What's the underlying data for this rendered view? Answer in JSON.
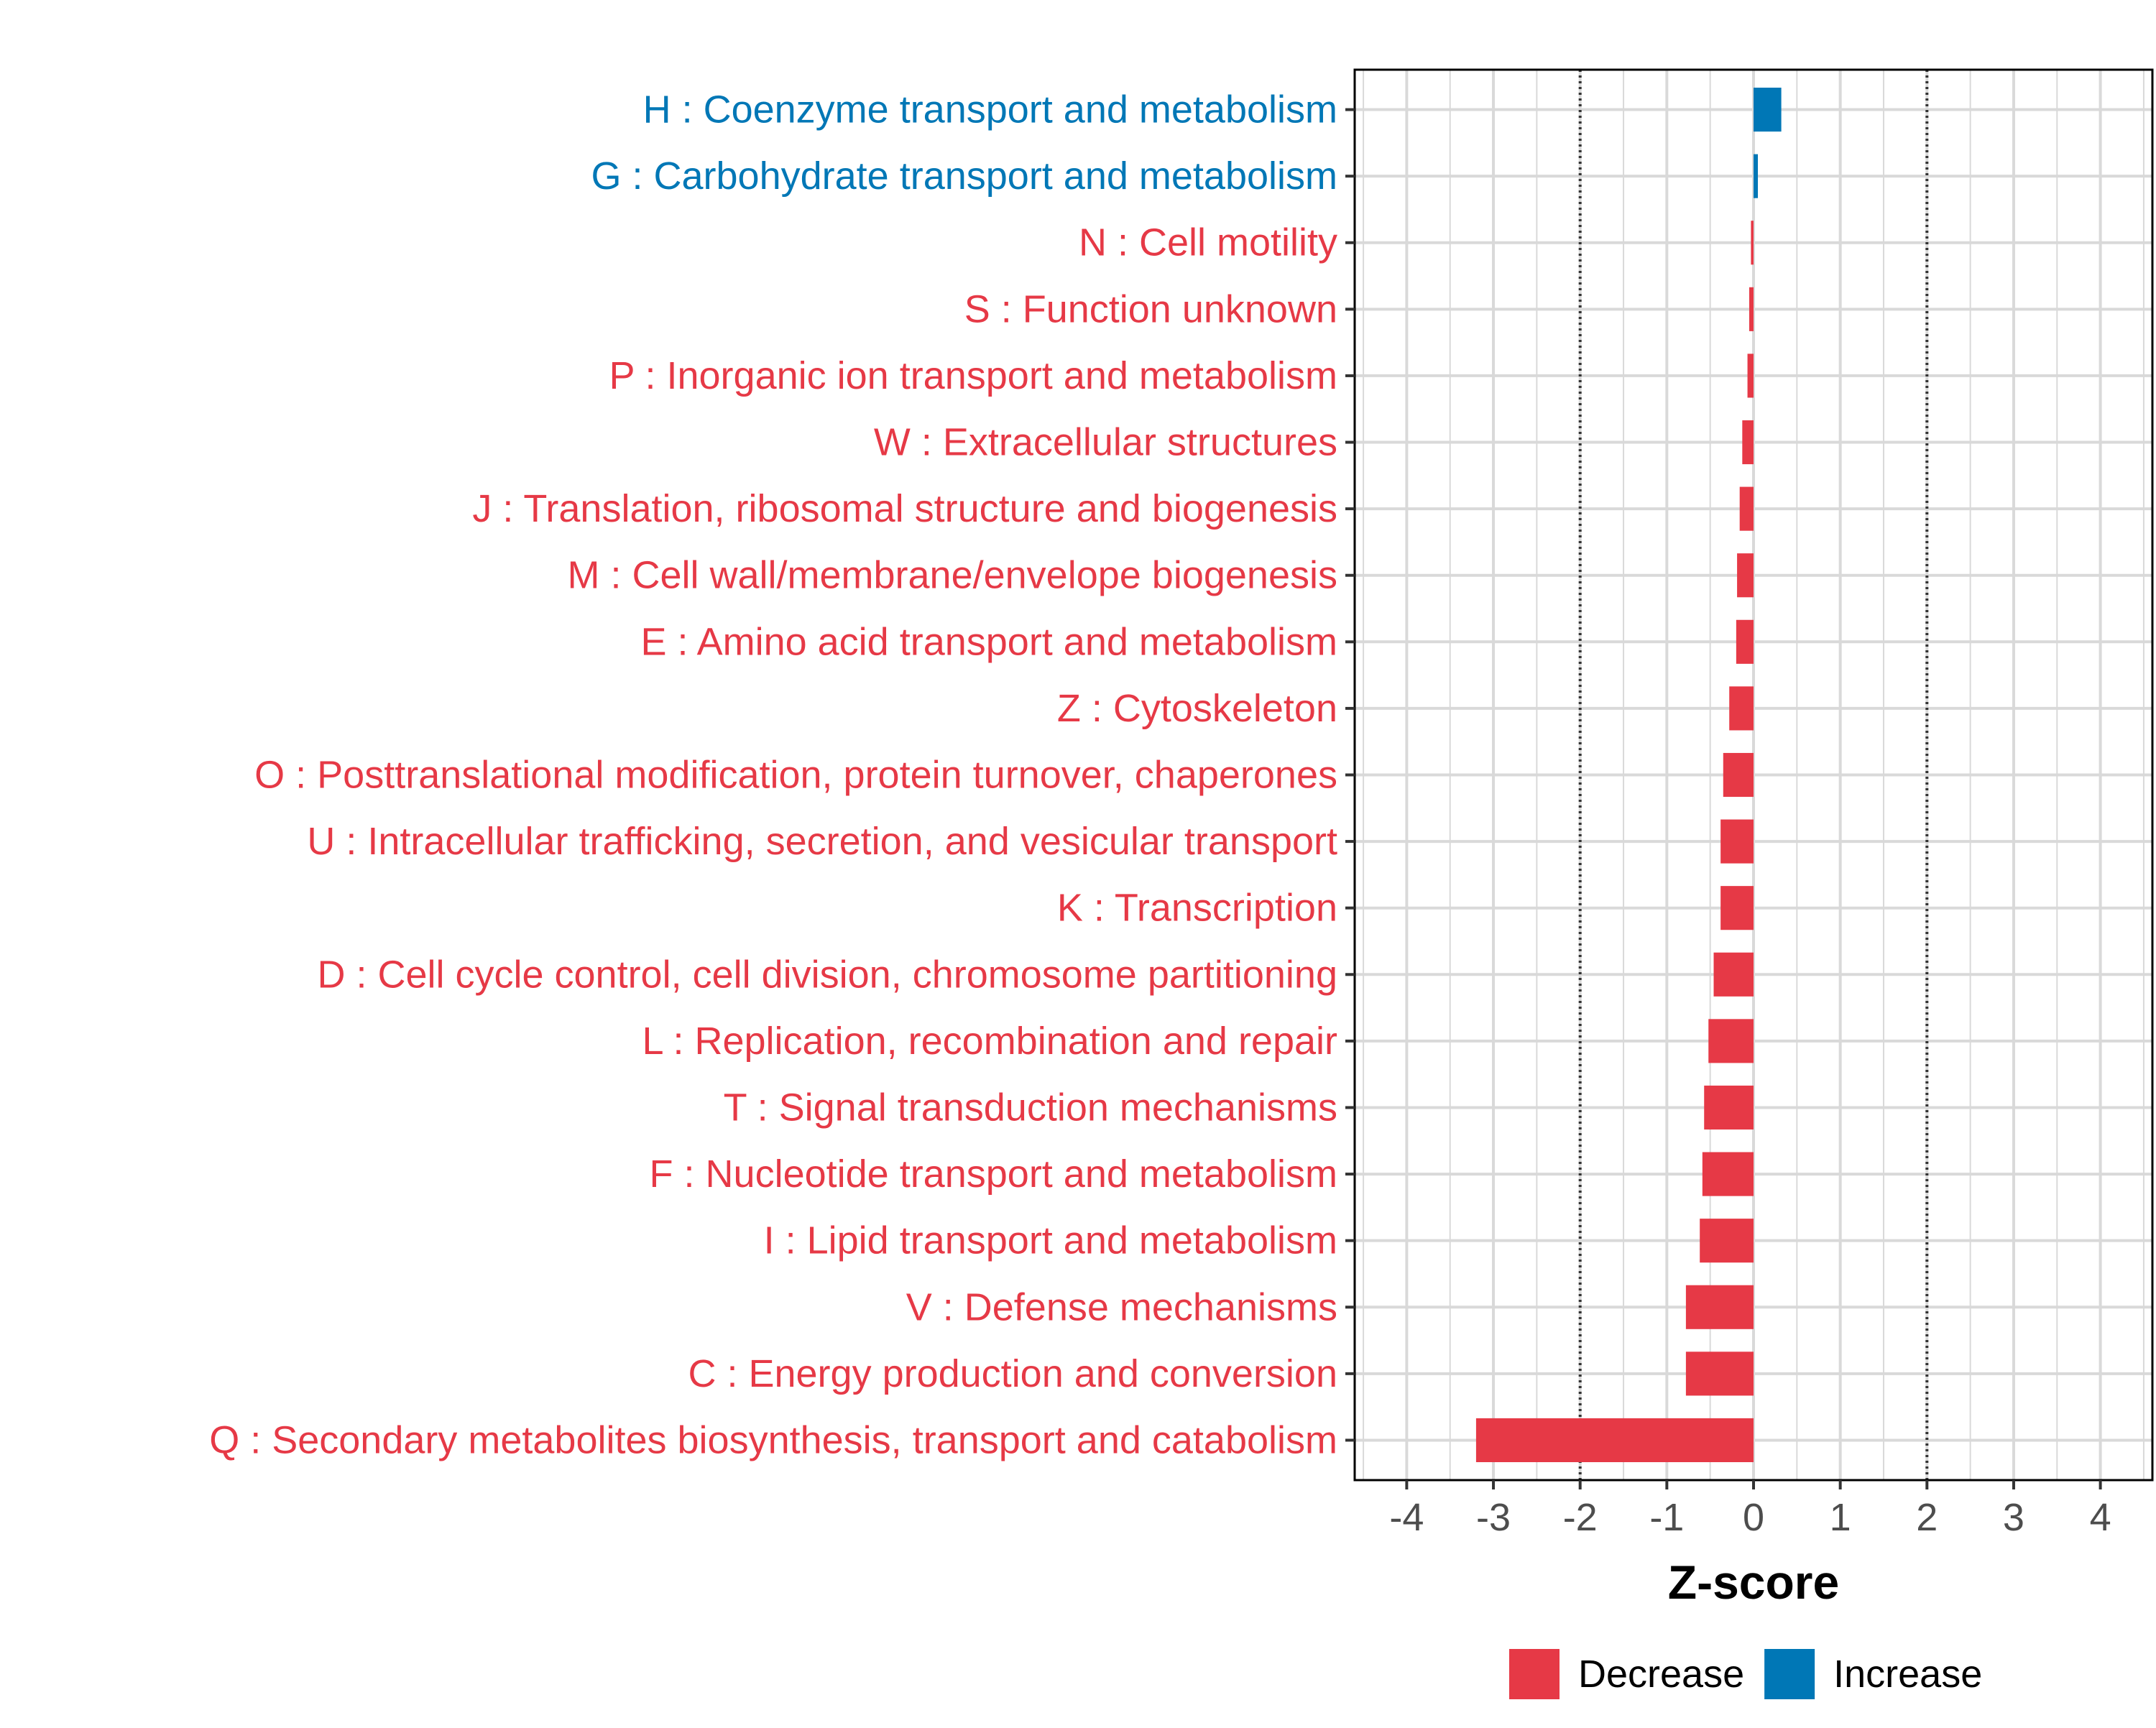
{
  "chart_data": {
    "type": "bar",
    "orientation": "horizontal",
    "categories": [
      "H : Coenzyme transport and metabolism",
      "G : Carbohydrate transport and metabolism",
      "N : Cell motility",
      "S : Function unknown",
      "P : Inorganic ion transport and metabolism",
      "W : Extracellular structures",
      "J : Translation, ribosomal structure and biogenesis",
      "M : Cell wall/membrane/envelope biogenesis",
      "E : Amino acid transport and metabolism",
      "Z : Cytoskeleton",
      "O : Posttranslational modification, protein turnover, chaperones",
      "U : Intracellular trafficking, secretion, and vesicular transport",
      "K : Transcription",
      "D : Cell cycle control, cell division, chromosome partitioning",
      "L : Replication, recombination and repair",
      "T : Signal transduction mechanisms",
      "F : Nucleotide transport and metabolism",
      "I : Lipid transport and metabolism",
      "V : Defense mechanisms",
      "C : Energy production and conversion",
      "Q : Secondary metabolites biosynthesis, transport and catabolism"
    ],
    "values": [
      0.32,
      0.05,
      -0.03,
      -0.05,
      -0.07,
      -0.13,
      -0.16,
      -0.19,
      -0.2,
      -0.28,
      -0.35,
      -0.38,
      -0.38,
      -0.46,
      -0.52,
      -0.57,
      -0.59,
      -0.62,
      -0.78,
      -0.78,
      -3.2
    ],
    "groups": [
      "Increase",
      "Increase",
      "Decrease",
      "Decrease",
      "Decrease",
      "Decrease",
      "Decrease",
      "Decrease",
      "Decrease",
      "Decrease",
      "Decrease",
      "Decrease",
      "Decrease",
      "Decrease",
      "Decrease",
      "Decrease",
      "Decrease",
      "Decrease",
      "Decrease",
      "Decrease",
      "Decrease"
    ],
    "xlabel": "Z-score",
    "ylabel": "",
    "title": "",
    "xlim": [
      -4.6,
      4.6
    ],
    "xticks": [
      -4,
      -3,
      -2,
      -1,
      0,
      1,
      2,
      3,
      4
    ],
    "tick_labels": [
      "-4",
      "-3",
      "-2",
      "-1",
      "0",
      "1",
      "2",
      "3",
      "4"
    ],
    "reference_lines": [
      -2,
      2
    ],
    "grid": true,
    "legend": {
      "position": "bottom",
      "entries": [
        {
          "name": "Decrease",
          "color": "#E63946"
        },
        {
          "name": "Increase",
          "color": "#0077B6"
        }
      ]
    },
    "colors": {
      "Decrease": "#E63946",
      "Increase": "#0077B6"
    }
  }
}
